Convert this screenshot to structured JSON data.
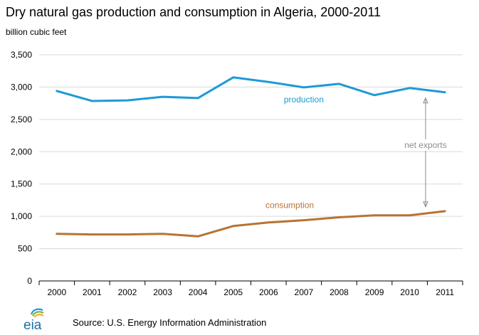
{
  "header": {
    "title": "Dry natural gas production and consumption in Algeria, 2000-2011",
    "unit": "billion cubic feet"
  },
  "footer": {
    "source": "Source: U.S. Energy Information Administration",
    "logo_text": "eia"
  },
  "chart_data": {
    "type": "line",
    "title": "Dry natural gas production and consumption in Algeria, 2000-2011",
    "ylabel": "billion cubic feet",
    "xlabel": "",
    "categories": [
      "2000",
      "2001",
      "2002",
      "2003",
      "2004",
      "2005",
      "2006",
      "2007",
      "2008",
      "2009",
      "2010",
      "2011"
    ],
    "ylim": [
      0,
      3500
    ],
    "yticks": [
      0,
      500,
      1000,
      1500,
      2000,
      2500,
      3000,
      3500
    ],
    "ytick_labels": [
      "0",
      "500",
      "1,000",
      "1,500",
      "2,000",
      "2,500",
      "3,000",
      "3,500"
    ],
    "grid": true,
    "series": [
      {
        "name": "production",
        "color": "#1d9ad6",
        "values": [
          2940,
          2785,
          2795,
          2850,
          2830,
          3150,
          3080,
          2995,
          3050,
          2875,
          2985,
          2920
        ]
      },
      {
        "name": "consumption",
        "color": "#b87333",
        "values": [
          730,
          720,
          720,
          730,
          690,
          850,
          905,
          940,
          985,
          1015,
          1015,
          1080
        ]
      }
    ],
    "annotations": [
      {
        "text": "net exports",
        "color": "#8c8c8c"
      }
    ]
  }
}
